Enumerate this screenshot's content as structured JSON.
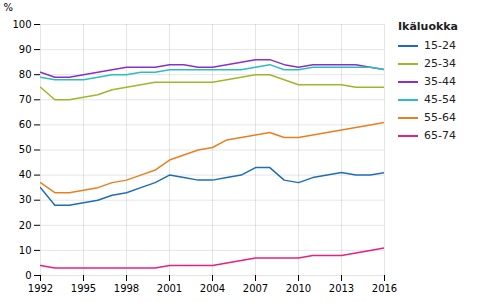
{
  "chart_data": {
    "type": "line",
    "ylabel": "%",
    "legend_title": "Ikäluokka",
    "legend": "right",
    "grid": true,
    "x": [
      1992,
      1993,
      1994,
      1995,
      1996,
      1997,
      1998,
      1999,
      2000,
      2001,
      2002,
      2003,
      2004,
      2005,
      2006,
      2007,
      2008,
      2009,
      2010,
      2011,
      2012,
      2013,
      2014,
      2015,
      2016
    ],
    "series": [
      {
        "name": "15-24",
        "color": "#1f6eb5",
        "values": [
          35,
          28,
          28,
          29,
          30,
          32,
          33,
          35,
          37,
          40,
          39,
          38,
          38,
          39,
          40,
          43,
          43,
          38,
          37,
          39,
          40,
          41,
          40,
          40,
          41
        ]
      },
      {
        "name": "25-34",
        "color": "#9db82a",
        "values": [
          75,
          70,
          70,
          71,
          72,
          74,
          75,
          76,
          77,
          77,
          77,
          77,
          77,
          78,
          79,
          80,
          80,
          78,
          76,
          76,
          76,
          76,
          75,
          75,
          75
        ]
      },
      {
        "name": "35-44",
        "color": "#8B2FC9",
        "values": [
          81,
          79,
          79,
          80,
          81,
          82,
          83,
          83,
          83,
          84,
          84,
          83,
          83,
          84,
          85,
          86,
          86,
          84,
          83,
          84,
          84,
          84,
          84,
          83,
          82
        ]
      },
      {
        "name": "45-54",
        "color": "#2ABFBF",
        "values": [
          79,
          78,
          78,
          78,
          79,
          80,
          80,
          81,
          81,
          82,
          82,
          82,
          82,
          82,
          82,
          83,
          84,
          82,
          82,
          83,
          83,
          83,
          83,
          83,
          82
        ]
      },
      {
        "name": "55-64",
        "color": "#E88020",
        "values": [
          37,
          33,
          33,
          34,
          35,
          37,
          38,
          40,
          42,
          46,
          48,
          50,
          51,
          54,
          55,
          56,
          57,
          55,
          55,
          56,
          57,
          58,
          59,
          60,
          61
        ]
      },
      {
        "name": "65-74",
        "color": "#E82080",
        "values": [
          4,
          3,
          3,
          3,
          3,
          3,
          3,
          3,
          3,
          4,
          4,
          4,
          4,
          5,
          6,
          7,
          7,
          7,
          7,
          8,
          8,
          8,
          9,
          10,
          11
        ]
      }
    ],
    "xlim": [
      1992,
      2016
    ],
    "xticks": [
      1992,
      1995,
      1998,
      2001,
      2004,
      2007,
      2010,
      2013,
      2016
    ],
    "ylim": [
      0,
      100
    ],
    "yticks": [
      0,
      10,
      20,
      30,
      40,
      50,
      60,
      70,
      80,
      90,
      100
    ]
  }
}
